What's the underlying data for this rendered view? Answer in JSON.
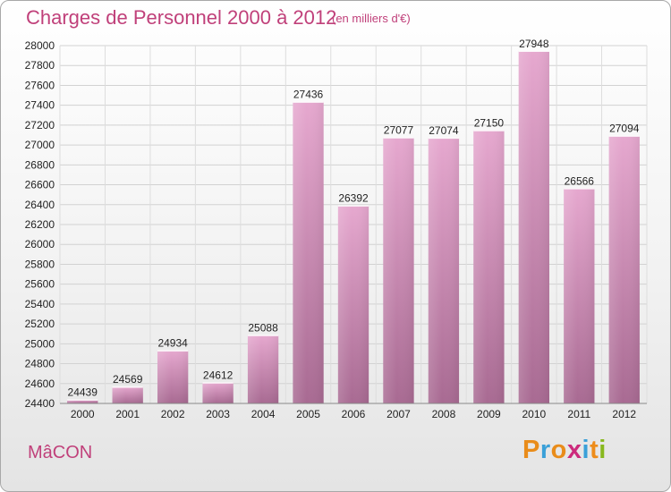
{
  "header": {
    "title": "Charges de Personnel 2000 à 2012",
    "subtitle": "(en milliers d'€)"
  },
  "footer": {
    "city": "MâCON",
    "logo_text": "Proxiti",
    "logo_colors": [
      "#e98c1a",
      "#3aa0d8",
      "#e98c1a",
      "#cc2a7c",
      "#3aa0d8",
      "#ee8c1a",
      "#88b81e"
    ]
  },
  "colors": {
    "accent": "#c0407a",
    "bar_top": "#e6a8cf",
    "bar_bottom": "#a86a92",
    "bar_highlight": "#ffffff"
  },
  "chart_data": {
    "type": "bar",
    "title": "Charges de Personnel 2000 à 2012",
    "subtitle": "(en milliers d'€)",
    "categories": [
      "2000",
      "2001",
      "2002",
      "2003",
      "2004",
      "2005",
      "2006",
      "2007",
      "2008",
      "2009",
      "2010",
      "2011",
      "2012"
    ],
    "values": [
      24439,
      24569,
      24934,
      24612,
      25088,
      27436,
      26392,
      27077,
      27074,
      27150,
      27948,
      26566,
      27094
    ],
    "ylim": [
      24400,
      28000
    ],
    "yticks": [
      24400,
      24600,
      24800,
      25000,
      25200,
      25400,
      25600,
      25800,
      26000,
      26200,
      26400,
      26600,
      26800,
      27000,
      27200,
      27400,
      27600,
      27800,
      28000
    ],
    "grid": true,
    "legend": false
  }
}
